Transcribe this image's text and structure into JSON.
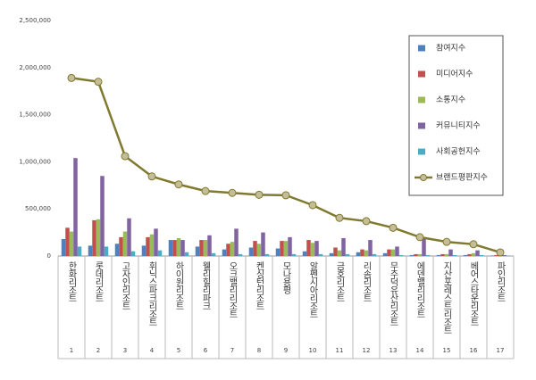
{
  "chart_data": {
    "type": "bar",
    "categories": [
      "한화리조트",
      "롯데리조트",
      "고자인리조트",
      "휘닉스파크리조트",
      "하이원리조트",
      "웰리힐리파크",
      "오크밸리리조트",
      "켄싱턴리조트",
      "모나용평",
      "알펜시아리조트",
      "금호리조트",
      "리솜리조트",
      "무주덕유산리조트",
      "에덴밸리리조트",
      "지산포레스트리조트",
      "베어스타운리조트",
      "파인리조트"
    ],
    "ranks": [
      1,
      2,
      3,
      4,
      5,
      6,
      7,
      8,
      9,
      10,
      11,
      12,
      13,
      14,
      15,
      16,
      17
    ],
    "series": [
      {
        "name": "참여지수",
        "color": "#4f81bd",
        "values": [
          180000,
          110000,
          130000,
          110000,
          170000,
          100000,
          70000,
          90000,
          80000,
          50000,
          30000,
          40000,
          30000,
          10000,
          10000,
          10000,
          5000
        ]
      },
      {
        "name": "미디어지수",
        "color": "#c0504d",
        "values": [
          300000,
          380000,
          200000,
          200000,
          170000,
          170000,
          130000,
          160000,
          160000,
          170000,
          90000,
          70000,
          70000,
          20000,
          20000,
          20000,
          10000
        ]
      },
      {
        "name": "소통지수",
        "color": "#9bbb59",
        "values": [
          260000,
          390000,
          260000,
          230000,
          190000,
          170000,
          150000,
          130000,
          160000,
          140000,
          60000,
          60000,
          70000,
          20000,
          20000,
          30000,
          10000
        ]
      },
      {
        "name": "커뮤니티지수",
        "color": "#8064a2",
        "values": [
          1040000,
          850000,
          400000,
          290000,
          170000,
          220000,
          290000,
          250000,
          200000,
          160000,
          190000,
          170000,
          100000,
          190000,
          70000,
          60000,
          10000
        ]
      },
      {
        "name": "사회공헌지수",
        "color": "#4bacc6",
        "values": [
          100000,
          100000,
          50000,
          60000,
          40000,
          30000,
          20000,
          20000,
          20000,
          20000,
          20000,
          20000,
          10000,
          10000,
          10000,
          10000,
          5000
        ]
      },
      {
        "name": "브랜드평판지수",
        "color": "#7f7a2e",
        "type": "line",
        "values": [
          1890000,
          1850000,
          1060000,
          845000,
          760000,
          690000,
          670000,
          650000,
          645000,
          540000,
          405000,
          370000,
          300000,
          200000,
          150000,
          125000,
          38000
        ]
      }
    ],
    "ylim": [
      0,
      2500000
    ],
    "yticks": [
      0,
      {
        "value": 500000,
        "label": "500,000"
      },
      {
        "value": 1000000,
        "label": "1,000,000"
      },
      {
        "value": 1500000,
        "label": "1,500,000"
      },
      {
        "value": 2000000,
        "label": "2,000,000"
      },
      {
        "value": 2500000,
        "label": "2,500,000"
      }
    ],
    "grid": false,
    "legend": "top-right"
  }
}
